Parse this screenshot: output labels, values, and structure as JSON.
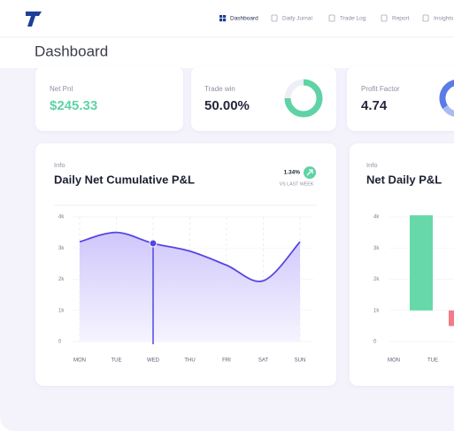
{
  "nav": {
    "items": [
      "Dashboard",
      "Daily Jurnal",
      "Trade Log",
      "Report",
      "Insights"
    ],
    "active": 0
  },
  "page_title": "Dashboard",
  "stats": [
    {
      "label": "Net Pnl",
      "value": "$245.33"
    },
    {
      "label": "Trade win",
      "value": "50.00%"
    },
    {
      "label": "Profit Factor",
      "value": "4.74"
    }
  ],
  "cumulative_chart": {
    "type": "line",
    "kicker": "Info",
    "title": "Daily Net Cumulative P&L",
    "change": "1.34%",
    "change_label": "VS LAST WEEK",
    "ylim": [
      0,
      4000
    ],
    "yticks": [
      0,
      {
        "value": 1000,
        "label": "1k"
      },
      {
        "value": 2000,
        "label": "2k"
      },
      {
        "value": 3000,
        "label": "3k"
      },
      {
        "value": 4000,
        "label": "4k"
      }
    ],
    "categories": [
      "MON",
      "TUE",
      "WED",
      "THU",
      "FRI",
      "SAT",
      "SUN"
    ],
    "values": [
      3200,
      3500,
      3150,
      2900,
      2450,
      1950,
      3200
    ],
    "color": "#5546e0"
  },
  "daily_chart": {
    "type": "bar",
    "kicker": "Info",
    "title": "Net Daily P&L",
    "ylim": [
      0,
      4000
    ],
    "yticks": [
      0,
      {
        "value": 1000,
        "label": "1k"
      },
      {
        "value": 2000,
        "label": "2k"
      },
      {
        "value": 3000,
        "label": "3k"
      },
      {
        "value": 4000,
        "label": "4k"
      }
    ],
    "categories": [
      "MON",
      "TUE"
    ],
    "bars": [
      {
        "low": 1000,
        "high": 4050,
        "color": "#66d8a9"
      },
      {
        "low": 500,
        "high": 1000,
        "color": "#f27b8a"
      }
    ]
  }
}
